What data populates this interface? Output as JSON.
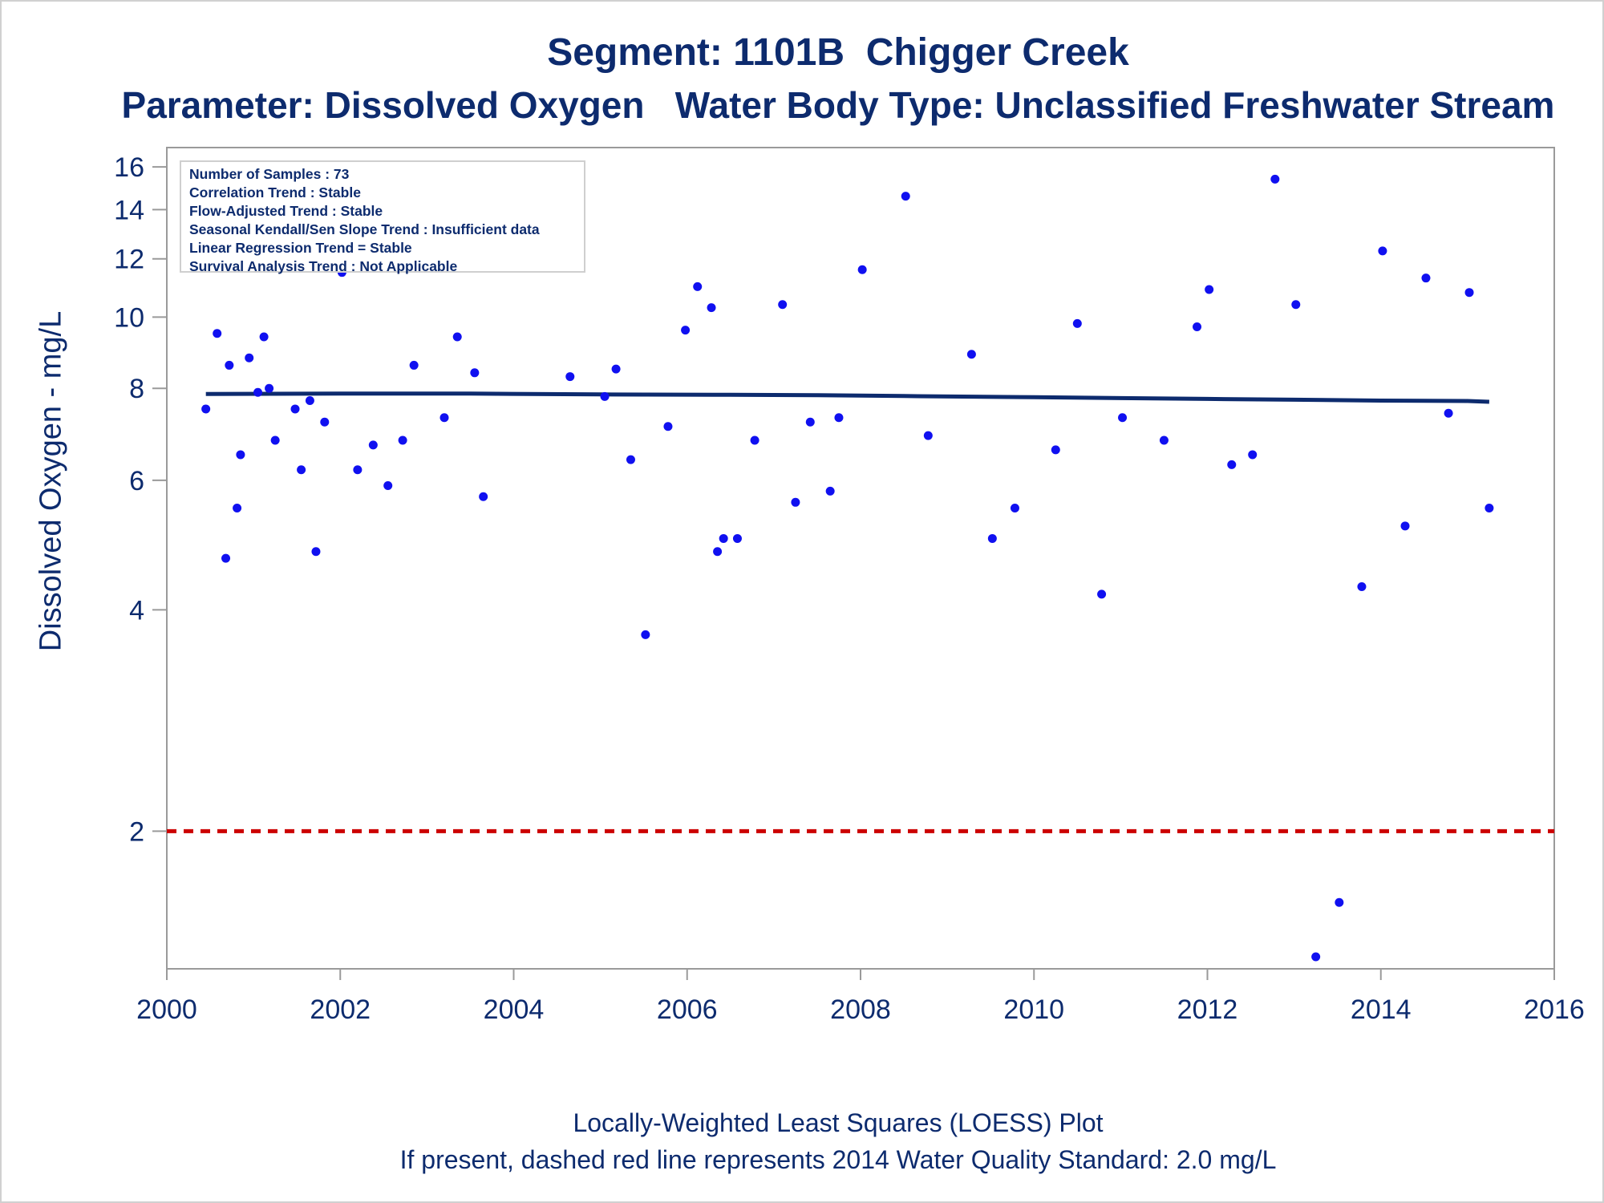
{
  "title": "Segment: 1101B  Chigger Creek",
  "subtitle": "Parameter: Dissolved Oxygen   Water Body Type: Unclassified Freshwater Stream",
  "footnotes": [
    "Locally-Weighted Least Squares (LOESS) Plot",
    "If present, dashed red line represents 2014 Water Quality Standard: 2.0 mg/L"
  ],
  "info_box": [
    "Number of Samples : 73",
    "Correlation Trend : Stable",
    "Flow-Adjusted Trend : Stable",
    "Seasonal Kendall/Sen Slope Trend : Insufficient data",
    "Linear Regression Trend = Stable",
    "Survival Analysis Trend : Not Applicable"
  ],
  "colors": {
    "points": "#1010f0",
    "loess_line": "#0d2b6e",
    "standard_line": "#cc0000",
    "text": "#0d2b6e",
    "axis": "#9a9a9a"
  },
  "chart_data": {
    "type": "scatter",
    "title": "Segment: 1101B  Chigger Creek",
    "xlabel": "",
    "ylabel": "Dissolved Oxygen - mg/L",
    "y_scale": "log",
    "xlim": [
      2000,
      2016
    ],
    "ylim": [
      1.3,
      17
    ],
    "x_ticks": [
      2000,
      2002,
      2004,
      2006,
      2008,
      2010,
      2012,
      2014,
      2016
    ],
    "y_ticks": [
      2,
      4,
      6,
      8,
      10,
      12,
      14,
      16
    ],
    "grid": false,
    "legend": "none",
    "series": [
      {
        "kind": "points",
        "x": [
          2000.45,
          2000.58,
          2000.68,
          2000.72,
          2000.81,
          2000.85,
          2000.95,
          2001.05,
          2001.12,
          2001.18,
          2001.25,
          2001.42,
          2001.48,
          2001.55,
          2001.65,
          2001.72,
          2001.82,
          2002.02,
          2002.2,
          2002.38,
          2002.55,
          2002.72,
          2002.85,
          2003.08,
          2003.2,
          2003.35,
          2003.55,
          2003.65,
          2004.65,
          2004.72,
          2005.05,
          2005.18,
          2005.35,
          2005.52,
          2005.78,
          2005.98,
          2006.12,
          2006.28,
          2006.35,
          2006.42,
          2006.58,
          2006.78,
          2007.1,
          2007.25,
          2007.42,
          2007.65,
          2007.75,
          2008.02,
          2008.52,
          2008.78,
          2009.28,
          2009.52,
          2009.78,
          2010.25,
          2010.5,
          2010.78,
          2011.02,
          2011.5,
          2011.88,
          2012.02,
          2012.28,
          2012.52,
          2012.78,
          2013.02,
          2013.25,
          2013.52,
          2013.78,
          2014.02,
          2014.28,
          2014.52,
          2014.78,
          2015.02,
          2015.25
        ],
        "y": [
          7.5,
          9.5,
          4.7,
          8.6,
          5.5,
          6.5,
          8.8,
          7.9,
          9.4,
          8.0,
          6.8,
          14.0,
          7.5,
          6.2,
          7.7,
          4.8,
          7.2,
          11.5,
          6.2,
          6.7,
          5.9,
          6.8,
          8.6,
          12.0,
          7.3,
          9.4,
          8.4,
          5.7,
          8.3,
          12.8,
          7.8,
          8.5,
          6.4,
          3.7,
          7.1,
          9.6,
          11.0,
          10.3,
          4.8,
          5.0,
          5.0,
          6.8,
          10.4,
          5.6,
          7.2,
          5.8,
          7.3,
          11.6,
          14.6,
          6.9,
          8.9,
          5.0,
          5.5,
          6.6,
          9.8,
          4.2,
          7.3,
          6.8,
          9.7,
          10.9,
          6.3,
          6.5,
          15.4,
          10.4,
          1.35,
          1.6,
          4.3,
          12.3,
          5.2,
          11.3,
          7.4,
          10.8,
          5.5
        ]
      },
      {
        "kind": "loess",
        "x": [
          2000.45,
          2002.0,
          2003.5,
          2005.0,
          2006.5,
          2007.5,
          2008.5,
          2010.0,
          2011.0,
          2012.0,
          2013.0,
          2014.0,
          2015.0,
          2015.25
        ],
        "y": [
          7.86,
          7.87,
          7.87,
          7.85,
          7.84,
          7.83,
          7.81,
          7.78,
          7.76,
          7.74,
          7.72,
          7.7,
          7.69,
          7.67
        ]
      },
      {
        "kind": "standard",
        "y": 2.0
      }
    ]
  }
}
